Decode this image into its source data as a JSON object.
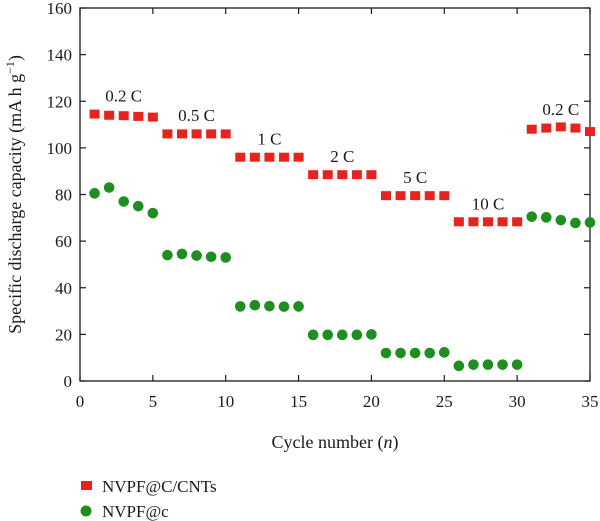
{
  "chart_data": {
    "type": "scatter",
    "xlabel": "Cycle number (n)",
    "xlabel_parts": {
      "prefix": "Cycle number (",
      "var": "n",
      "suffix": ")"
    },
    "ylabel": "Specific discharge capacity (mA h g−1)",
    "ylabel_parts": {
      "main": "Specific discharge capacity (mA h g",
      "sup": "−1",
      "end": ")"
    },
    "xlim": [
      0,
      35
    ],
    "ylim": [
      0,
      160
    ],
    "xticks": [
      0,
      5,
      10,
      15,
      20,
      25,
      30,
      35
    ],
    "yticks": [
      0,
      20,
      40,
      60,
      80,
      100,
      120,
      140,
      160
    ],
    "grid": false,
    "legend_position": "bottom-left",
    "series": [
      {
        "name": "NVPF@C/CNTs",
        "marker": "square",
        "color": "#e8231f",
        "x": [
          1,
          2,
          3,
          4,
          5,
          6,
          7,
          8,
          9,
          10,
          11,
          12,
          13,
          14,
          15,
          16,
          17,
          18,
          19,
          20,
          21,
          22,
          23,
          24,
          25,
          26,
          27,
          28,
          29,
          30,
          31,
          32,
          33,
          34,
          35
        ],
        "y": [
          114.5,
          114,
          113.8,
          113.5,
          113.2,
          106,
          106,
          106,
          106,
          106,
          96,
          96,
          96,
          96,
          96,
          88.5,
          88.5,
          88.5,
          88.5,
          88.5,
          79.5,
          79.5,
          79.5,
          79.5,
          79.5,
          68.3,
          68.3,
          68.3,
          68.3,
          68.3,
          108,
          108.5,
          109,
          108.5,
          107
        ]
      },
      {
        "name": "NVPF@c",
        "marker": "circle",
        "color": "#1e8e1e",
        "x": [
          1,
          2,
          3,
          4,
          5,
          6,
          7,
          8,
          9,
          10,
          11,
          12,
          13,
          14,
          15,
          16,
          17,
          18,
          19,
          20,
          21,
          22,
          23,
          24,
          25,
          26,
          27,
          28,
          29,
          30,
          31,
          32,
          33,
          34,
          35
        ],
        "y": [
          80.5,
          83,
          77,
          75,
          72,
          54,
          54.5,
          53.8,
          53.3,
          53,
          32,
          32.5,
          32.1,
          31.9,
          32,
          19.8,
          19.8,
          19.8,
          19.8,
          20,
          12,
          12,
          12,
          12,
          12.3,
          6.5,
          7,
          7,
          7,
          7,
          70.5,
          70.2,
          69,
          67.8,
          68
        ]
      }
    ],
    "annotations": [
      {
        "text": "0.2 C",
        "x": 3,
        "y": 120
      },
      {
        "text": "0.5 C",
        "x": 8,
        "y": 111.5
      },
      {
        "text": "1 C",
        "x": 13,
        "y": 101.5
      },
      {
        "text": "2 C",
        "x": 18,
        "y": 94
      },
      {
        "text": "5 C",
        "x": 23,
        "y": 85
      },
      {
        "text": "10 C",
        "x": 28,
        "y": 73.5
      },
      {
        "text": "0.2 C",
        "x": 33,
        "y": 114
      }
    ]
  }
}
